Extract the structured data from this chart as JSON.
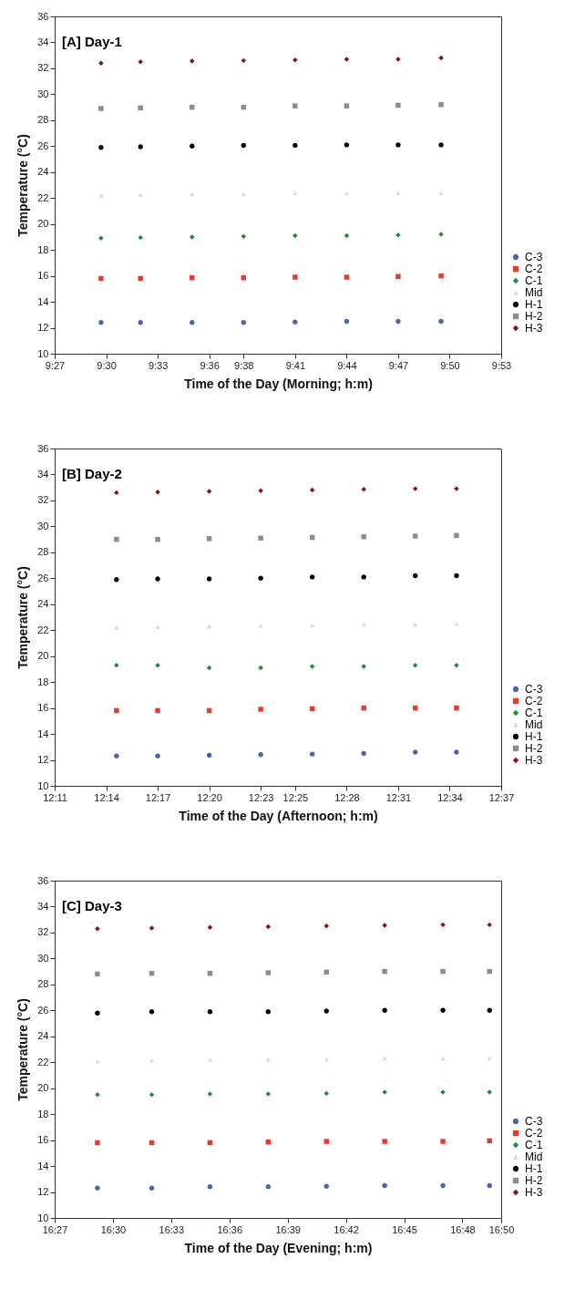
{
  "chart_data": [
    {
      "type": "scatter",
      "title": "[A] Day-1",
      "xlabel": "Time of the Day (Morning; h:m)",
      "ylabel": "Temperature (°C)",
      "legend": "bottom right",
      "ylim": [
        10,
        36
      ],
      "yticks": [
        10,
        12,
        14,
        16,
        18,
        20,
        22,
        24,
        26,
        28,
        30,
        32,
        34,
        36
      ],
      "xlim": [
        9.45,
        9.8833
      ],
      "xticks": [
        {
          "value": 9.45,
          "label": "9:27"
        },
        {
          "value": 9.5,
          "label": "9:30"
        },
        {
          "value": 9.55,
          "label": "9:33"
        },
        {
          "value": 9.6,
          "label": "9:36"
        },
        {
          "value": 9.6333,
          "label": "9:38"
        },
        {
          "value": 9.6833,
          "label": "9:41"
        },
        {
          "value": 9.7333,
          "label": "9:44"
        },
        {
          "value": 9.7833,
          "label": "9:47"
        },
        {
          "value": 9.8333,
          "label": "9:50"
        },
        {
          "value": 9.8833,
          "label": "9:53"
        }
      ],
      "x": [
        9.495,
        9.5333,
        9.5833,
        9.6333,
        9.6833,
        9.7333,
        9.7833,
        9.825
      ],
      "series": [
        {
          "name": "C-3",
          "color": "#4a62b0",
          "marker": "circle",
          "values": [
            12.4,
            12.4,
            12.4,
            12.4,
            12.45,
            12.5,
            12.5,
            12.5
          ]
        },
        {
          "name": "C-2",
          "color": "#e8392d",
          "marker": "square",
          "values": [
            15.8,
            15.8,
            15.85,
            15.85,
            15.9,
            15.9,
            15.95,
            16.0
          ]
        },
        {
          "name": "C-1",
          "color": "#1f8a3c",
          "marker": "diamond",
          "values": [
            18.9,
            18.95,
            19.0,
            19.05,
            19.1,
            19.1,
            19.15,
            19.2
          ]
        },
        {
          "name": "Mid",
          "color": "#e8d3e6",
          "marker": "triangle",
          "values": [
            22.2,
            22.25,
            22.3,
            22.3,
            22.4,
            22.4,
            22.4,
            22.4
          ]
        },
        {
          "name": "H-1",
          "color": "#000000",
          "marker": "circle",
          "values": [
            25.9,
            25.95,
            26.0,
            26.05,
            26.05,
            26.1,
            26.1,
            26.1
          ]
        },
        {
          "name": "H-2",
          "color": "#8c8c8c",
          "marker": "square",
          "values": [
            28.9,
            28.95,
            29.0,
            29.0,
            29.1,
            29.1,
            29.15,
            29.2
          ]
        },
        {
          "name": "H-3",
          "color": "#8b1010",
          "marker": "diamond",
          "values": [
            32.4,
            32.5,
            32.55,
            32.6,
            32.65,
            32.7,
            32.7,
            32.8
          ]
        }
      ]
    },
    {
      "type": "scatter",
      "title": "[B] Day-2",
      "xlabel": "Time of the Day (Afternoon; h:m)",
      "ylabel": "Temperature (°C)",
      "legend": "bottom right",
      "ylim": [
        10,
        36
      ],
      "yticks": [
        10,
        12,
        14,
        16,
        18,
        20,
        22,
        24,
        26,
        28,
        30,
        32,
        34,
        36
      ],
      "xlim": [
        12.1833,
        12.6167
      ],
      "xticks": [
        {
          "value": 12.1833,
          "label": "12:11"
        },
        {
          "value": 12.2333,
          "label": "12:14"
        },
        {
          "value": 12.2833,
          "label": "12:17"
        },
        {
          "value": 12.3333,
          "label": "12:20"
        },
        {
          "value": 12.3833,
          "label": "12:23"
        },
        {
          "value": 12.4167,
          "label": "12:25"
        },
        {
          "value": 12.4667,
          "label": "12:28"
        },
        {
          "value": 12.5167,
          "label": "12:31"
        },
        {
          "value": 12.5667,
          "label": "12:34"
        },
        {
          "value": 12.6167,
          "label": "12:37"
        }
      ],
      "x": [
        12.2433,
        12.2833,
        12.3333,
        12.3833,
        12.4333,
        12.4833,
        12.5333,
        12.5733
      ],
      "series": [
        {
          "name": "C-3",
          "color": "#4a62b0",
          "marker": "circle",
          "values": [
            12.3,
            12.3,
            12.35,
            12.4,
            12.45,
            12.5,
            12.6,
            12.6
          ]
        },
        {
          "name": "C-2",
          "color": "#e8392d",
          "marker": "square",
          "values": [
            15.8,
            15.8,
            15.8,
            15.9,
            15.95,
            16.0,
            16.0,
            16.0
          ]
        },
        {
          "name": "C-1",
          "color": "#1f8a3c",
          "marker": "diamond",
          "values": [
            19.3,
            19.3,
            19.1,
            19.1,
            19.2,
            19.2,
            19.3,
            19.3
          ]
        },
        {
          "name": "Mid",
          "color": "#e8d3e6",
          "marker": "triangle",
          "values": [
            22.2,
            22.25,
            22.3,
            22.35,
            22.4,
            22.45,
            22.45,
            22.5
          ]
        },
        {
          "name": "H-1",
          "color": "#000000",
          "marker": "circle",
          "values": [
            25.9,
            25.95,
            25.95,
            26.0,
            26.1,
            26.1,
            26.2,
            26.2
          ]
        },
        {
          "name": "H-2",
          "color": "#8c8c8c",
          "marker": "square",
          "values": [
            29.0,
            29.0,
            29.05,
            29.1,
            29.15,
            29.2,
            29.25,
            29.3
          ]
        },
        {
          "name": "H-3",
          "color": "#8b1010",
          "marker": "diamond",
          "values": [
            32.6,
            32.65,
            32.7,
            32.75,
            32.8,
            32.85,
            32.9,
            32.9
          ]
        }
      ]
    },
    {
      "type": "scatter",
      "title": "[C] Day-3",
      "xlabel": "Time of the Day (Evening; h:m)",
      "ylabel": "Temperature (°C)",
      "legend": "bottom right",
      "ylim": [
        10,
        36
      ],
      "yticks": [
        10,
        12,
        14,
        16,
        18,
        20,
        22,
        24,
        26,
        28,
        30,
        32,
        34,
        36
      ],
      "xlim": [
        16.45,
        16.8333
      ],
      "xticks": [
        {
          "value": 16.45,
          "label": "16:27"
        },
        {
          "value": 16.5,
          "label": "16:30"
        },
        {
          "value": 16.55,
          "label": "16:33"
        },
        {
          "value": 16.6,
          "label": "16:36"
        },
        {
          "value": 16.65,
          "label": "16:39"
        },
        {
          "value": 16.7,
          "label": "16:42"
        },
        {
          "value": 16.75,
          "label": "16:45"
        },
        {
          "value": 16.8,
          "label": "16:48"
        },
        {
          "value": 16.8333,
          "label": "16:50"
        }
      ],
      "x": [
        16.4867,
        16.5333,
        16.5833,
        16.6333,
        16.6833,
        16.7333,
        16.7833,
        16.8233
      ],
      "series": [
        {
          "name": "C-3",
          "color": "#4a62b0",
          "marker": "circle",
          "values": [
            12.3,
            12.3,
            12.4,
            12.4,
            12.45,
            12.5,
            12.5,
            12.5
          ]
        },
        {
          "name": "C-2",
          "color": "#e8392d",
          "marker": "square",
          "values": [
            15.8,
            15.8,
            15.8,
            15.85,
            15.9,
            15.9,
            15.9,
            15.95
          ]
        },
        {
          "name": "C-1",
          "color": "#1f8a3c",
          "marker": "diamond",
          "values": [
            19.5,
            19.5,
            19.55,
            19.55,
            19.6,
            19.7,
            19.7,
            19.7
          ]
        },
        {
          "name": "Mid",
          "color": "#e8d3e6",
          "marker": "triangle",
          "values": [
            22.1,
            22.15,
            22.2,
            22.2,
            22.2,
            22.3,
            22.3,
            22.3
          ]
        },
        {
          "name": "H-1",
          "color": "#000000",
          "marker": "circle",
          "values": [
            25.8,
            25.9,
            25.9,
            25.9,
            25.95,
            26.0,
            26.0,
            26.0
          ]
        },
        {
          "name": "H-2",
          "color": "#8c8c8c",
          "marker": "square",
          "values": [
            28.8,
            28.85,
            28.85,
            28.9,
            28.95,
            29.0,
            29.0,
            29.0
          ]
        },
        {
          "name": "H-3",
          "color": "#8b1010",
          "marker": "diamond",
          "values": [
            32.3,
            32.35,
            32.4,
            32.45,
            32.5,
            32.55,
            32.6,
            32.6
          ]
        }
      ]
    }
  ]
}
